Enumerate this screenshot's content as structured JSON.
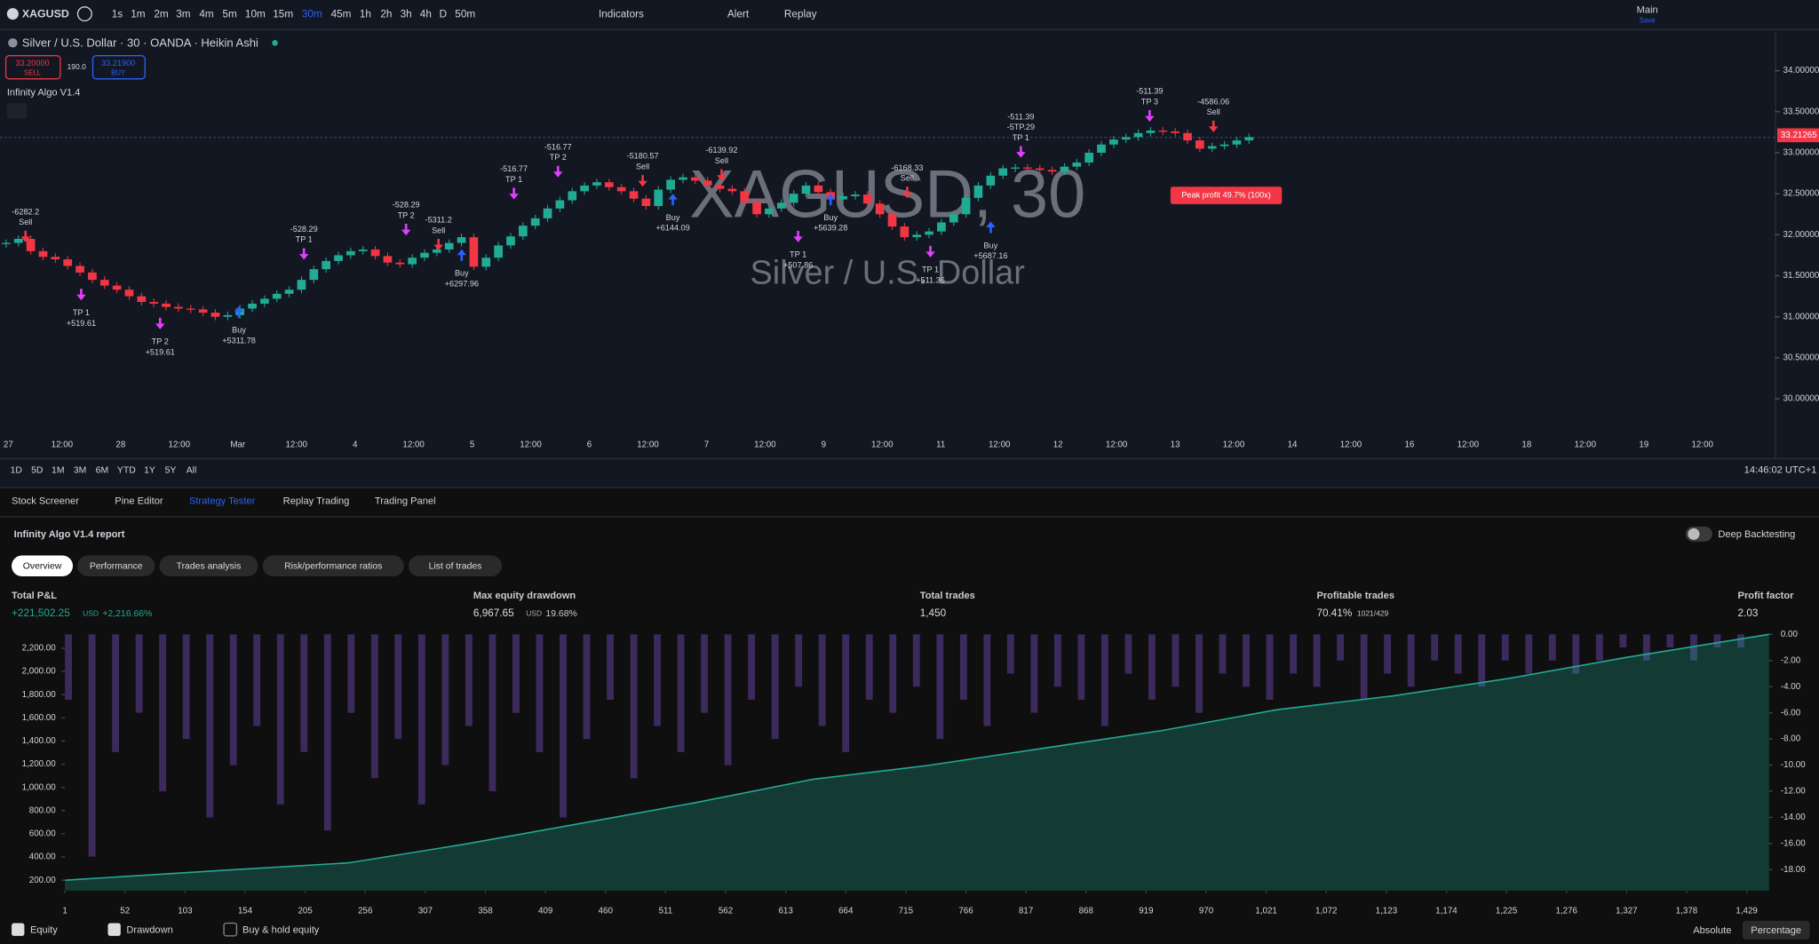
{
  "toolbar": {
    "symbol": "XAGUSD",
    "intervals": [
      "1s",
      "1m",
      "2m",
      "3m",
      "4m",
      "5m",
      "10m",
      "15m",
      "30m",
      "45m",
      "1h",
      "2h",
      "3h",
      "4h",
      "D",
      "50m"
    ],
    "indicators": "Indicators",
    "alert": "Alert",
    "replay": "Replay",
    "layout": "Main",
    "save": "Save"
  },
  "chart_header": {
    "title": "Silver / U.S. Dollar · 30 · OANDA · Heikin Ashi",
    "sell_price": "33.20000",
    "sell": "SELL",
    "spread": "190.0",
    "buy_price": "33.21900",
    "buy": "BUY",
    "indicator": "Infinity Algo V1.4"
  },
  "watermark": {
    "symbol": "XAGUSD, 30",
    "name": "Silver / U.S. Dollar"
  },
  "signals": [
    {
      "lines": [
        "-6282.2",
        "Sell"
      ]
    },
    {
      "lines": [
        "TP 1",
        "+519.61"
      ]
    },
    {
      "lines": [
        "TP 2",
        "+519.61"
      ]
    },
    {
      "lines": [
        "Buy",
        "+5311.78"
      ]
    },
    {
      "lines": [
        "-528.29",
        "TP 1"
      ]
    },
    {
      "lines": [
        "-528.29",
        "TP 2"
      ]
    },
    {
      "lines": [
        "-5311.2",
        "Sell"
      ]
    },
    {
      "lines": [
        "Buy",
        "+6297.96"
      ]
    },
    {
      "lines": [
        "-516.77",
        "TP 1"
      ]
    },
    {
      "lines": [
        "-516.77",
        "TP 2"
      ]
    },
    {
      "lines": [
        "-5180.57",
        "Sell"
      ]
    },
    {
      "lines": [
        "Buy",
        "+6144.09"
      ]
    },
    {
      "lines": [
        "-6139.92",
        "Sell"
      ]
    },
    {
      "lines": [
        "TP 1",
        "+507.86"
      ]
    },
    {
      "lines": [
        "Buy",
        "+5639.28"
      ]
    },
    {
      "lines": [
        "-6168.33",
        "Sell"
      ]
    },
    {
      "lines": [
        "TP 1",
        "+511.36"
      ]
    },
    {
      "lines": [
        "Buy",
        "+5687.16"
      ]
    },
    {
      "lines": [
        "-511.39",
        "-5TP.29",
        "TP 1"
      ]
    },
    {
      "lines": [
        "-511.39",
        "TP 3"
      ]
    },
    {
      "lines": [
        "-4586.06",
        "Sell"
      ]
    }
  ],
  "peak_profit": "Peak profit 49.7% (100x)",
  "time_labels": [
    "27",
    "12:00",
    "28",
    "12:00",
    "Mar",
    "12:00",
    "4",
    "12:00",
    "5",
    "12:00",
    "6",
    "12:00",
    "7",
    "12:00",
    "9",
    "12:00",
    "11",
    "12:00",
    "12",
    "12:00",
    "13",
    "12:00",
    "14",
    "12:00",
    "16",
    "12:00",
    "18",
    "12:00",
    "19",
    "12:00"
  ],
  "ranges": [
    "1D",
    "5D",
    "1M",
    "3M",
    "6M",
    "YTD",
    "1Y",
    "5Y",
    "All"
  ],
  "clock": "14:46:02 UTC+1",
  "panel_tabs": [
    "Stock Screener",
    "Pine Editor",
    "Strategy Tester",
    "Replay Trading",
    "Trading Panel"
  ],
  "report": {
    "title": "Infinity Algo V1.4 report",
    "deep_backtesting": "Deep Backtesting",
    "tabs": [
      "Overview",
      "Performance",
      "Trades analysis",
      "Risk/performance ratios",
      "List of trades"
    ]
  },
  "metrics": [
    {
      "label": "Total P&L",
      "value": "+221,502.25",
      "unit": "USD",
      "extra": "+2,216.66%"
    },
    {
      "label": "Max equity drawdown",
      "value": "6,967.65",
      "unit": "USD",
      "extra": "19.68%"
    },
    {
      "label": "Total trades",
      "value": "1,450"
    },
    {
      "label": "Profitable trades",
      "value": "70.41%",
      "extra": "1021/429"
    },
    {
      "label": "Profit factor",
      "value": "2.03"
    }
  ],
  "legend": {
    "items": [
      "Equity",
      "Drawdown",
      "Buy & hold equity"
    ],
    "modes": [
      "Absolute",
      "Percentage"
    ]
  },
  "chart_data": [
    {
      "type": "candlestick",
      "up_color": "#22ab94",
      "down_color": "#f23645",
      "values": [
        31.9,
        31.95,
        31.8,
        31.73,
        31.7,
        31.62,
        31.54,
        31.45,
        31.38,
        31.33,
        31.25,
        31.18,
        31.16,
        31.12,
        31.1,
        31.09,
        31.05,
        31.0,
        31.02,
        31.1,
        31.16,
        31.22,
        31.28,
        31.33,
        31.45,
        31.58,
        31.68,
        31.75,
        31.8,
        31.82,
        31.74,
        31.66,
        31.64,
        31.72,
        31.78,
        31.82,
        31.9,
        31.97,
        31.61,
        31.72,
        31.87,
        31.98,
        32.11,
        32.2,
        32.32,
        32.42,
        32.53,
        32.6,
        32.64,
        32.58,
        32.53,
        32.44,
        32.35,
        32.55,
        32.67,
        32.7,
        32.66,
        32.6,
        32.56,
        32.53,
        32.4,
        32.25,
        32.32,
        32.39,
        32.5,
        32.6,
        32.52,
        32.43,
        32.47,
        32.49,
        32.38,
        32.25,
        32.1,
        31.97,
        32.0,
        32.04,
        32.15,
        32.25,
        32.45,
        32.6,
        32.72,
        32.81,
        32.82,
        32.81,
        32.79,
        32.77,
        32.83,
        32.88,
        33.0,
        33.1,
        33.16,
        33.19,
        33.24,
        33.27,
        33.26,
        33.24,
        33.15,
        33.05,
        33.08,
        33.1,
        33.15,
        33.19
      ],
      "ylim": [
        29.56,
        34.48
      ],
      "yticks": [
        {
          "value": 34,
          "label": "34.00000"
        },
        {
          "value": 33.5,
          "label": "33.50000"
        },
        {
          "value": 33,
          "label": "33.00000"
        },
        {
          "value": 32.5,
          "label": "32.50000"
        },
        {
          "value": 32,
          "label": "32.00000"
        },
        {
          "value": 31.5,
          "label": "31.50000"
        },
        {
          "value": 31,
          "label": "31.00000"
        },
        {
          "value": 30.5,
          "label": "30.50000"
        },
        {
          "value": 30,
          "label": "30.00000"
        }
      ],
      "last_price": 33.21265,
      "last_price_color": "#f23645"
    },
    {
      "type": "area",
      "xlim": [
        1,
        1448
      ],
      "ylim": [
        110,
        2320
      ],
      "y2lim": [
        -19.6,
        0
      ],
      "xticks": [
        1,
        52,
        103,
        154,
        205,
        256,
        307,
        358,
        409,
        460,
        511,
        562,
        613,
        664,
        715,
        766,
        817,
        868,
        919,
        970,
        {
          "value": 1021,
          "label": "1,021"
        },
        {
          "value": 1072,
          "label": "1,072"
        },
        {
          "value": 1123,
          "label": "1,123"
        },
        {
          "value": 1174,
          "label": "1,174"
        },
        {
          "value": 1225,
          "label": "1,225"
        },
        {
          "value": 1276,
          "label": "1,276"
        },
        {
          "value": 1327,
          "label": "1,327"
        },
        {
          "value": 1378,
          "label": "1,378"
        },
        {
          "value": 1429,
          "label": "1,429"
        }
      ],
      "yticks": [
        {
          "value": 200,
          "label": "200.00"
        },
        {
          "value": 400,
          "label": "400.00"
        },
        {
          "value": 600,
          "label": "600.00"
        },
        {
          "value": 800,
          "label": "800.00"
        },
        {
          "value": 1000,
          "label": "1,000.00"
        },
        {
          "value": 1200,
          "label": "1,200.00"
        },
        {
          "value": 1400,
          "label": "1,400.00"
        },
        {
          "value": 1600,
          "label": "1,600.00"
        },
        {
          "value": 1800,
          "label": "1,800.00"
        },
        {
          "value": 2000,
          "label": "2,000.00"
        },
        {
          "value": 2200,
          "label": "2,200.00"
        }
      ],
      "y2ticks": [
        {
          "value": 0,
          "label": "0.00"
        },
        {
          "value": -2,
          "label": "-2.00"
        },
        {
          "value": -4,
          "label": "-4.00"
        },
        {
          "value": -6,
          "label": "-6.00"
        },
        {
          "value": -8,
          "label": "-8.00"
        },
        {
          "value": -10,
          "label": "-10.00"
        },
        {
          "value": -12,
          "label": "-12.00"
        },
        {
          "value": -14,
          "label": "-14.00"
        },
        {
          "value": -16,
          "label": "-16.00"
        },
        {
          "value": -18,
          "label": "-18.00"
        }
      ],
      "series": [
        {
          "name": "Equity",
          "color": "#22ab94",
          "x": [
            1,
            143,
            242,
            340,
            439,
            537,
            636,
            734,
            833,
            932,
            1030,
            1129,
            1227,
            1326,
            1448
          ],
          "values": [
            200,
            290,
            350,
            510,
            690,
            870,
            1070,
            1190,
            1340,
            1490,
            1670,
            1790,
            1940,
            2120,
            2320
          ]
        },
        {
          "name": "Drawdown",
          "color": "#3d2a5c",
          "axis": "y2",
          "x": [
            1,
            21,
            41,
            61,
            81,
            101,
            121,
            141,
            161,
            181,
            201,
            221,
            241,
            261,
            281,
            301,
            321,
            341,
            361,
            381,
            401,
            421,
            441,
            461,
            481,
            501,
            521,
            541,
            561,
            581,
            601,
            621,
            641,
            661,
            681,
            701,
            721,
            741,
            761,
            781,
            801,
            821,
            841,
            861,
            881,
            901,
            921,
            941,
            961,
            981,
            1001,
            1021,
            1041,
            1061,
            1081,
            1101,
            1121,
            1141,
            1161,
            1181,
            1201,
            1221,
            1241,
            1261,
            1281,
            1301,
            1321,
            1341,
            1361,
            1381,
            1401,
            1421
          ],
          "values": [
            -5,
            -17,
            -9,
            -6,
            -12,
            -8,
            -14,
            -10,
            -7,
            -13,
            -9,
            -15,
            -6,
            -11,
            -8,
            -13,
            -10,
            -7,
            -12,
            -6,
            -9,
            -14,
            -8,
            -5,
            -11,
            -7,
            -9,
            -6,
            -10,
            -5,
            -8,
            -4,
            -7,
            -9,
            -5,
            -6,
            -4,
            -8,
            -5,
            -7,
            -3,
            -6,
            -4,
            -5,
            -7,
            -3,
            -5,
            -4,
            -6,
            -3,
            -4,
            -5,
            -3,
            -4,
            -2,
            -5,
            -3,
            -4,
            -2,
            -3,
            -4,
            -2,
            -3,
            -2,
            -3,
            -2,
            -1,
            -2,
            -1,
            -2,
            -1,
            -1
          ]
        }
      ]
    }
  ]
}
